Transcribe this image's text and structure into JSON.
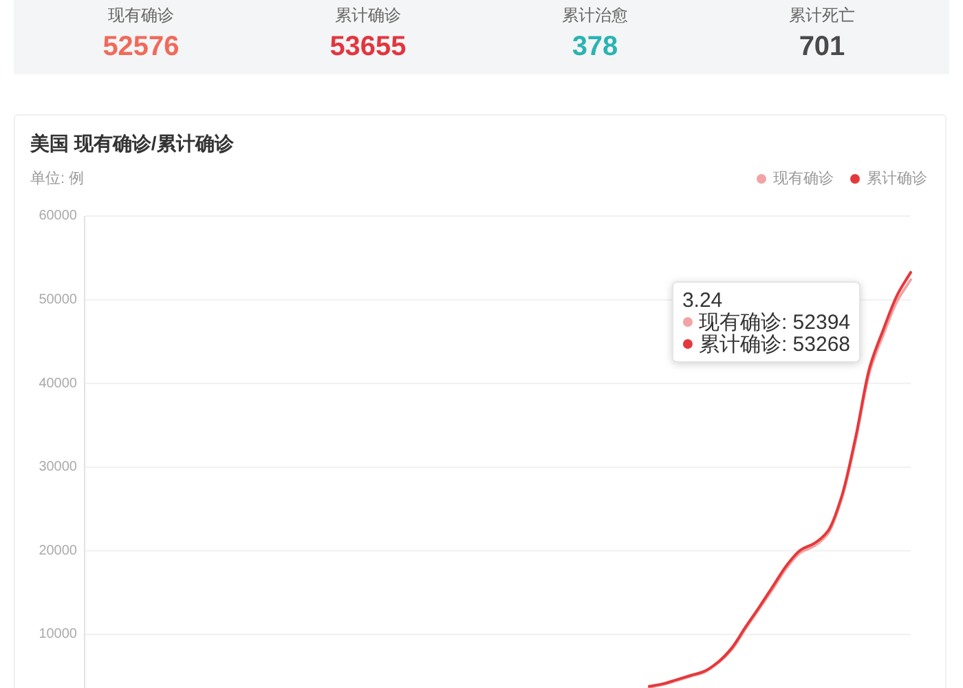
{
  "chart_data": [
    {
      "type": "other",
      "categories": [
        "现有确诊",
        "累计确诊",
        "累计治愈",
        "累计死亡"
      ],
      "values": [
        52576,
        53655,
        378,
        701
      ],
      "data_labels": true
    },
    {
      "type": "line",
      "title": "美国 现有确诊/累计确诊",
      "subtitle": "单位: 例",
      "categories": [
        null,
        null,
        null,
        null,
        null,
        null,
        null,
        null,
        null,
        null,
        null,
        null,
        null,
        null,
        null,
        null,
        null,
        null,
        null,
        null,
        null,
        null,
        null,
        null,
        null,
        null,
        null,
        null,
        null,
        null,
        null,
        null,
        null,
        null,
        null,
        null,
        null,
        null,
        null,
        null,
        null,
        null,
        null,
        null,
        null,
        null,
        null,
        null,
        null,
        null,
        null,
        null,
        null,
        null,
        null,
        null,
        null,
        null,
        null,
        null,
        null
      ],
      "series": [
        {
          "name": "现有确诊",
          "color": "#f2a3a3",
          "values": [
            null,
            null,
            null,
            null,
            null,
            null,
            null,
            null,
            null,
            null,
            null,
            null,
            null,
            null,
            null,
            null,
            null,
            null,
            null,
            null,
            null,
            null,
            null,
            null,
            null,
            null,
            null,
            null,
            null,
            null,
            null,
            null,
            null,
            null,
            null,
            null,
            null,
            null,
            null,
            null,
            null,
            3700,
            4000,
            4500,
            5000,
            5500,
            6600,
            8200,
            10700,
            13100,
            15500,
            18000,
            19800,
            20600,
            22100,
            26300,
            33200,
            41300,
            45800,
            49800,
            52394
          ]
        },
        {
          "name": "累计确诊",
          "color": "#e4393c",
          "values": [
            null,
            null,
            null,
            null,
            null,
            null,
            null,
            null,
            null,
            null,
            null,
            null,
            null,
            null,
            null,
            null,
            null,
            null,
            null,
            null,
            null,
            null,
            null,
            null,
            null,
            null,
            null,
            null,
            null,
            null,
            null,
            null,
            null,
            null,
            null,
            null,
            null,
            null,
            null,
            null,
            null,
            3800,
            4100,
            4600,
            5100,
            5600,
            6700,
            8400,
            10900,
            13300,
            15800,
            18300,
            20100,
            20900,
            22400,
            26600,
            33600,
            41800,
            46400,
            50500,
            53268
          ]
        }
      ],
      "ylim": [
        3600,
        60000
      ],
      "yticks": [
        10000,
        20000,
        30000,
        40000,
        50000,
        60000
      ],
      "grid": "y",
      "legend": "top right",
      "tick_labels": "y",
      "annotations": [
        "3.24",
        "现有确诊: 52394",
        "累计确诊: 53268"
      ]
    }
  ]
}
